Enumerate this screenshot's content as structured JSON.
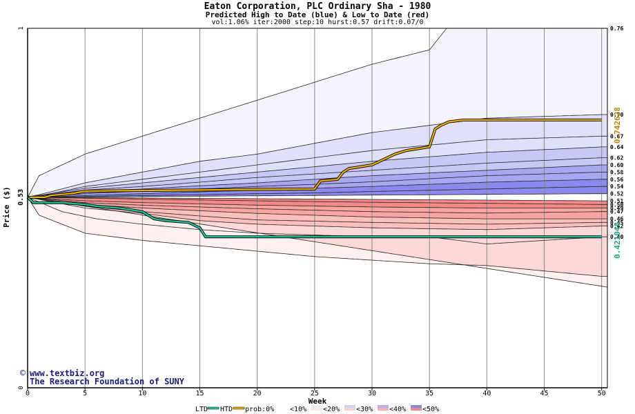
{
  "header": {
    "title": "Eaton Corporation, PLC Ordinary Sha - 1980",
    "subtitle": "Predicted High to Date (blue) &  Low to Date (red)",
    "params": "vol:1.06% iter:2000 step:10 hurst:0.57 drift:0.07/0"
  },
  "watermark": {
    "line1": "www.textbiz.org",
    "line2": "The Research Foundation of SUNY"
  },
  "chart_data": {
    "type": "area",
    "xlabel": "Week",
    "ylabel": "Price ($)",
    "xlim": [
      0,
      50.5
    ],
    "ylim": [
      0,
      1
    ],
    "x_ticks": [
      "0",
      "5",
      "10",
      "15",
      "20",
      "25",
      "30",
      "35",
      "40",
      "45",
      "50"
    ],
    "y_ticks": [
      "0",
      "1"
    ],
    "start_price_label": "0.53",
    "start_price": 0.53,
    "grid": true,
    "colors": {
      "htd": "#f0b000",
      "ltd": "#20c8a0",
      "band_high": [
        "#f4f4fc",
        "#e0e0fa",
        "#c8c8f6",
        "#a8a8f2",
        "#8a8aec"
      ],
      "band_low": [
        "#fdf0ee",
        "#fcd8d6",
        "#fbc0bc",
        "#f8a4a0",
        "#f48a88"
      ]
    },
    "high_quantiles": [
      {
        "label": "0.76",
        "values": [
          [
            0,
            0.53
          ],
          [
            1,
            0.59
          ],
          [
            5,
            0.65
          ],
          [
            10,
            0.7
          ],
          [
            15,
            0.75
          ],
          [
            20,
            0.8
          ],
          [
            25,
            0.85
          ],
          [
            30,
            0.9
          ],
          [
            35,
            0.94
          ],
          [
            36.5,
            1.0
          ]
        ]
      },
      {
        "label": "0.70",
        "values": [
          [
            0,
            0.53
          ],
          [
            2,
            0.545
          ],
          [
            5,
            0.57
          ],
          [
            10,
            0.6
          ],
          [
            15,
            0.63
          ],
          [
            20,
            0.65
          ],
          [
            25,
            0.68
          ],
          [
            30,
            0.71
          ],
          [
            35,
            0.73
          ],
          [
            40,
            0.75
          ],
          [
            50,
            0.76
          ]
        ]
      },
      {
        "label": "0.67",
        "values": [
          [
            0,
            0.53
          ],
          [
            2,
            0.54
          ],
          [
            5,
            0.56
          ],
          [
            10,
            0.58
          ],
          [
            15,
            0.6
          ],
          [
            20,
            0.62
          ],
          [
            25,
            0.64
          ],
          [
            30,
            0.66
          ],
          [
            40,
            0.69
          ],
          [
            50,
            0.7
          ]
        ]
      },
      {
        "label": "0.64",
        "values": [
          [
            0,
            0.53
          ],
          [
            2,
            0.54
          ],
          [
            5,
            0.555
          ],
          [
            10,
            0.57
          ],
          [
            15,
            0.585
          ],
          [
            20,
            0.6
          ],
          [
            25,
            0.615
          ],
          [
            30,
            0.63
          ],
          [
            40,
            0.655
          ],
          [
            50,
            0.67
          ]
        ]
      },
      {
        "label": "0.62",
        "values": [
          [
            0,
            0.53
          ],
          [
            2,
            0.538
          ],
          [
            5,
            0.55
          ],
          [
            10,
            0.56
          ],
          [
            15,
            0.572
          ],
          [
            20,
            0.585
          ],
          [
            25,
            0.595
          ],
          [
            30,
            0.605
          ],
          [
            40,
            0.625
          ],
          [
            50,
            0.64
          ]
        ]
      },
      {
        "label": "0.60",
        "values": [
          [
            0,
            0.53
          ],
          [
            2,
            0.535
          ],
          [
            5,
            0.545
          ],
          [
            10,
            0.553
          ],
          [
            15,
            0.562
          ],
          [
            20,
            0.57
          ],
          [
            25,
            0.58
          ],
          [
            30,
            0.59
          ],
          [
            40,
            0.605
          ],
          [
            50,
            0.62
          ]
        ]
      },
      {
        "label": "0.58",
        "values": [
          [
            0,
            0.53
          ],
          [
            2,
            0.533
          ],
          [
            5,
            0.54
          ],
          [
            10,
            0.547
          ],
          [
            15,
            0.553
          ],
          [
            20,
            0.56
          ],
          [
            25,
            0.566
          ],
          [
            30,
            0.573
          ],
          [
            40,
            0.59
          ],
          [
            50,
            0.6
          ]
        ]
      },
      {
        "label": "0.56",
        "values": [
          [
            0,
            0.53
          ],
          [
            2,
            0.531
          ],
          [
            5,
            0.535
          ],
          [
            10,
            0.54
          ],
          [
            15,
            0.545
          ],
          [
            20,
            0.55
          ],
          [
            25,
            0.555
          ],
          [
            30,
            0.56
          ],
          [
            40,
            0.572
          ],
          [
            50,
            0.58
          ]
        ]
      },
      {
        "label": "0.54",
        "values": [
          [
            0,
            0.53
          ],
          [
            5,
            0.532
          ],
          [
            10,
            0.535
          ],
          [
            15,
            0.537
          ],
          [
            20,
            0.54
          ],
          [
            25,
            0.542
          ],
          [
            30,
            0.546
          ],
          [
            40,
            0.553
          ],
          [
            50,
            0.56
          ]
        ]
      },
      {
        "label": "0.52",
        "values": [
          [
            0,
            0.53
          ],
          [
            50,
            0.54
          ]
        ]
      }
    ],
    "low_quantiles": [
      {
        "label": "0.51",
        "values": [
          [
            0,
            0.53
          ],
          [
            50,
            0.52
          ]
        ]
      },
      {
        "label": "0.50",
        "values": [
          [
            0,
            0.53
          ],
          [
            10,
            0.525
          ],
          [
            20,
            0.52
          ],
          [
            30,
            0.516
          ],
          [
            40,
            0.513
          ],
          [
            50,
            0.51
          ]
        ]
      },
      {
        "label": "0.49",
        "values": [
          [
            0,
            0.53
          ],
          [
            5,
            0.52
          ],
          [
            10,
            0.515
          ],
          [
            20,
            0.508
          ],
          [
            30,
            0.503
          ],
          [
            40,
            0.5
          ],
          [
            50,
            0.5
          ]
        ]
      },
      {
        "label": "0.47",
        "values": [
          [
            0,
            0.53
          ],
          [
            5,
            0.515
          ],
          [
            10,
            0.508
          ],
          [
            20,
            0.498
          ],
          [
            30,
            0.49
          ],
          [
            40,
            0.486
          ],
          [
            50,
            0.49
          ]
        ]
      },
      {
        "label": "0.46",
        "values": [
          [
            0,
            0.53
          ],
          [
            5,
            0.51
          ],
          [
            10,
            0.5
          ],
          [
            20,
            0.485
          ],
          [
            30,
            0.475
          ],
          [
            40,
            0.47
          ],
          [
            50,
            0.47
          ]
        ]
      },
      {
        "label": "0.45",
        "values": [
          [
            0,
            0.53
          ],
          [
            5,
            0.505
          ],
          [
            10,
            0.49
          ],
          [
            15,
            0.478
          ],
          [
            20,
            0.467
          ],
          [
            30,
            0.46
          ],
          [
            40,
            0.455
          ],
          [
            50,
            0.46
          ]
        ]
      },
      {
        "label": "0.42",
        "values": [
          [
            0,
            0.53
          ],
          [
            5,
            0.5
          ],
          [
            10,
            0.485
          ],
          [
            15,
            0.465
          ],
          [
            20,
            0.455
          ],
          [
            30,
            0.445
          ],
          [
            40,
            0.44
          ],
          [
            50,
            0.45
          ]
        ]
      },
      {
        "label": "0.40",
        "values": [
          [
            0,
            0.53
          ],
          [
            3,
            0.49
          ],
          [
            6,
            0.47
          ],
          [
            10,
            0.455
          ],
          [
            15,
            0.44
          ],
          [
            20,
            0.43
          ],
          [
            25,
            0.425
          ],
          [
            30,
            0.42
          ],
          [
            35,
            0.42
          ],
          [
            40,
            0.4
          ],
          [
            50,
            0.42
          ]
        ]
      },
      {
        "label": "",
        "values": [
          [
            0,
            0.53
          ],
          [
            1,
            0.48
          ],
          [
            5,
            0.43
          ],
          [
            10,
            0.41
          ],
          [
            15,
            0.395
          ],
          [
            20,
            0.38
          ],
          [
            25,
            0.365
          ],
          [
            30,
            0.355
          ],
          [
            35,
            0.345
          ],
          [
            40,
            0.34
          ],
          [
            50,
            0.31
          ]
        ]
      },
      {
        "label": "",
        "values": [
          [
            0,
            0.53
          ],
          [
            50.5,
            0.28
          ]
        ]
      }
    ],
    "htd_series": {
      "name": "HTD",
      "end_label": "0.742628",
      "values": [
        [
          0,
          0.53
        ],
        [
          1.5,
          0.53
        ],
        [
          2,
          0.535
        ],
        [
          3,
          0.538
        ],
        [
          4,
          0.541
        ],
        [
          5,
          0.547
        ],
        [
          10,
          0.549
        ],
        [
          15,
          0.55
        ],
        [
          20,
          0.552
        ],
        [
          25,
          0.553
        ],
        [
          25.5,
          0.575
        ],
        [
          27,
          0.58
        ],
        [
          27.5,
          0.6
        ],
        [
          28,
          0.61
        ],
        [
          29,
          0.615
        ],
        [
          30,
          0.62
        ],
        [
          32,
          0.65
        ],
        [
          33,
          0.66
        ],
        [
          35,
          0.67
        ],
        [
          35.5,
          0.72
        ],
        [
          36,
          0.73
        ],
        [
          36.7,
          0.74
        ],
        [
          38,
          0.745
        ],
        [
          50,
          0.745
        ]
      ]
    },
    "ltd_series": {
      "name": "LTD",
      "end_label": "0.421048",
      "values": [
        [
          0,
          0.53
        ],
        [
          0.5,
          0.515
        ],
        [
          3,
          0.515
        ],
        [
          5,
          0.51
        ],
        [
          6,
          0.505
        ],
        [
          8,
          0.5
        ],
        [
          10,
          0.49
        ],
        [
          11,
          0.47
        ],
        [
          12,
          0.465
        ],
        [
          14,
          0.46
        ],
        [
          15,
          0.445
        ],
        [
          15.5,
          0.42
        ],
        [
          25,
          0.42
        ],
        [
          35,
          0.42
        ],
        [
          50,
          0.42
        ]
      ]
    },
    "legend": {
      "ltd": "LTD",
      "htd": "HTD",
      "prob": "prob:0%",
      "items": [
        "<10%",
        "<20%",
        "<30%",
        "<40%",
        "<50%"
      ]
    }
  }
}
